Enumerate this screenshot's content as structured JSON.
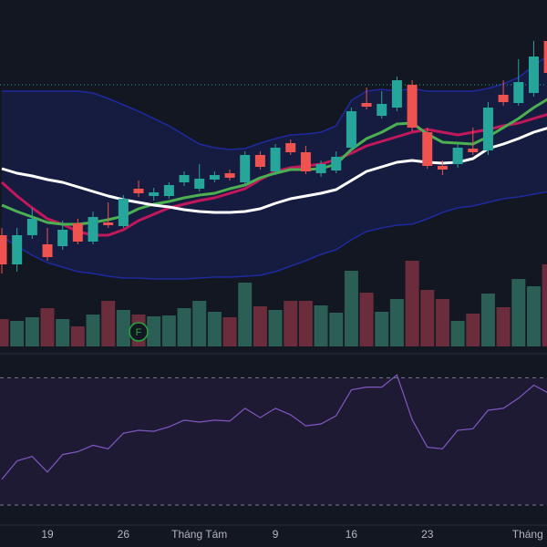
{
  "chart_data": {
    "type": "candlestick",
    "categories": [
      null,
      null,
      null,
      "19",
      null,
      null,
      null,
      null,
      "26",
      null,
      null,
      null,
      null,
      "Tháng Tám",
      null,
      null,
      null,
      null,
      "9",
      null,
      null,
      null,
      null,
      "16",
      null,
      null,
      null,
      null,
      "23",
      null,
      null,
      null,
      null,
      null,
      "Tháng",
      null,
      null
    ],
    "open": [
      72,
      40,
      72,
      62,
      60,
      85,
      65,
      86,
      82,
      123,
      115,
      115,
      130,
      123,
      133,
      140,
      130,
      160,
      142,
      173,
      163,
      140,
      143,
      168,
      217,
      203,
      212,
      237,
      185,
      148,
      150,
      167,
      165,
      226,
      217,
      228,
      285
    ],
    "high": [
      80,
      80,
      102,
      80,
      88,
      90,
      98,
      108,
      116,
      132,
      124,
      130,
      142,
      150,
      142,
      144,
      164,
      164,
      172,
      177,
      170,
      154,
      164,
      212,
      234,
      230,
      246,
      242,
      190,
      154,
      172,
      190,
      218,
      242,
      265,
      285,
      290
    ],
    "low": [
      30,
      32,
      68,
      44,
      56,
      62,
      62,
      80,
      80,
      114,
      110,
      112,
      126,
      120,
      130,
      132,
      126,
      144,
      138,
      160,
      139,
      136,
      140,
      165,
      210,
      200,
      208,
      186,
      145,
      138,
      146,
      160,
      160,
      214,
      214,
      224,
      246
    ],
    "close": [
      40,
      72,
      90,
      48,
      78,
      65,
      92,
      83,
      112,
      118,
      119,
      127,
      138,
      134,
      138,
      135,
      160,
      147,
      168,
      163,
      142,
      150,
      158,
      208,
      213,
      216,
      242,
      190,
      148,
      144,
      168,
      163,
      212,
      218,
      240,
      268,
      250
    ],
    "up_color": "#26a69a",
    "down_color": "#ef5350",
    "ylim": [
      0,
      330
    ],
    "price_line": 237,
    "price_line_color": "#26a69a",
    "bollinger": {
      "color": "#1e2a9e",
      "fill": "#161c40",
      "upper": [
        230,
        230,
        230,
        230,
        230,
        230,
        228,
        222,
        215,
        208,
        200,
        192,
        182,
        172,
        168,
        166,
        167,
        173,
        178,
        182,
        183,
        185,
        192,
        220,
        230,
        232,
        230,
        233,
        230,
        230,
        230,
        230,
        233,
        238,
        245,
        258,
        270
      ],
      "lower": [
        70,
        60,
        50,
        42,
        37,
        32,
        30,
        27,
        25,
        25,
        24,
        24,
        24,
        25,
        26,
        26,
        27,
        28,
        32,
        38,
        44,
        51,
        56,
        67,
        76,
        80,
        83,
        84,
        90,
        97,
        102,
        104,
        108,
        112,
        114,
        117,
        120
      ]
    },
    "lines": [
      {
        "color": "#c2185b",
        "values": [
          130,
          115,
          102,
          90,
          84,
          76,
          72,
          72,
          78,
          88,
          95,
          102,
          106,
          110,
          113,
          118,
          123,
          133,
          142,
          146,
          148,
          150,
          155,
          162,
          170,
          175,
          180,
          185,
          188,
          185,
          182,
          185,
          188,
          192,
          195,
          200,
          205
        ]
      },
      {
        "color": "#4caf50",
        "values": [
          105,
          98,
          92,
          86,
          84,
          84,
          86,
          89,
          93,
          101,
          106,
          109,
          113,
          116,
          118,
          123,
          127,
          135,
          140,
          144,
          144,
          145,
          150,
          166,
          178,
          185,
          194,
          195,
          183,
          174,
          173,
          172,
          180,
          190,
          200,
          212,
          222
        ]
      },
      {
        "color": "#ffffff",
        "values": [
          145,
          140,
          137,
          133,
          130,
          125,
          120,
          115,
          111,
          108,
          105,
          103,
          100,
          98,
          97,
          97,
          98,
          101,
          107,
          112,
          115,
          118,
          122,
          132,
          142,
          147,
          152,
          154,
          152,
          151,
          152,
          156,
          167,
          172,
          178,
          185,
          190
        ]
      }
    ],
    "volume": {
      "values": [
        30,
        28,
        32,
        42,
        30,
        22,
        35,
        50,
        40,
        35,
        33,
        34,
        42,
        50,
        38,
        32,
        70,
        44,
        40,
        50,
        50,
        45,
        37,
        83,
        59,
        38,
        52,
        94,
        62,
        52,
        28,
        36,
        58,
        43,
        74,
        66,
        90
      ],
      "ylim": [
        0,
        380
      ],
      "up_color": "#2b5e54",
      "down_color": "#6b2d3b"
    },
    "event_label": "F",
    "rsi": {
      "values": [
        38.1,
        43.9,
        45.3,
        40.4,
        45.9,
        46.8,
        48.8,
        47.7,
        52.6,
        53.5,
        53.2,
        54.6,
        56.7,
        56.1,
        56.7,
        56.4,
        60.4,
        57.5,
        60.4,
        58.4,
        54.9,
        55.5,
        58.1,
        66.2,
        67.1,
        67.1,
        70.9,
        56.9,
        48.2,
        47.7,
        53.5,
        54,
        59.8,
        60.4,
        63.6,
        67.7,
        65.1
      ],
      "ylim": [
        24,
        77
      ],
      "bands": [
        70,
        30
      ],
      "color": "#7e57c2",
      "band_fill": "#1f1a33"
    }
  }
}
